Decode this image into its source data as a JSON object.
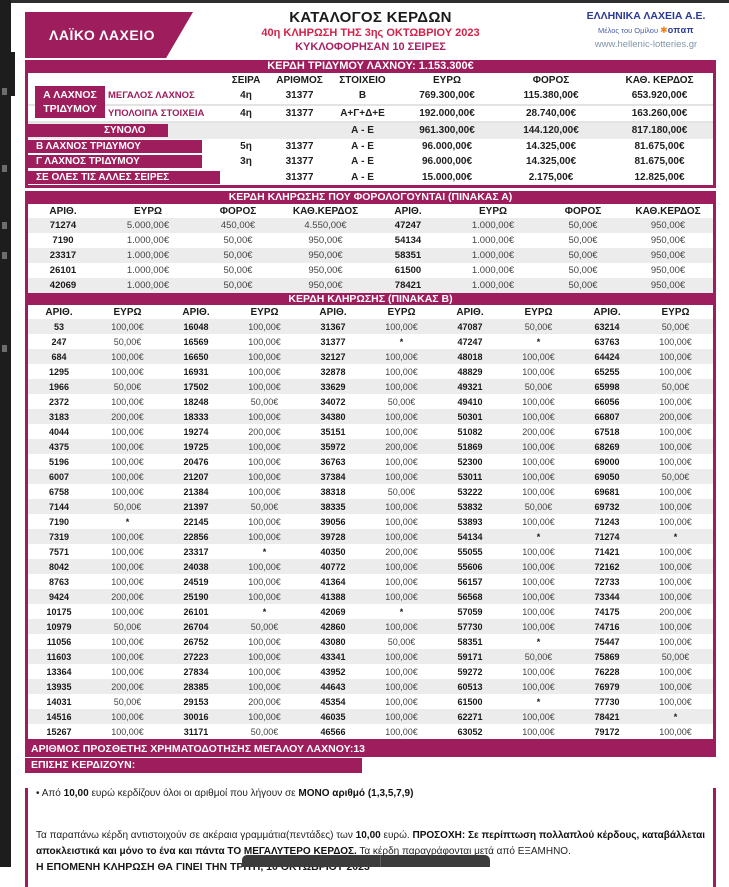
{
  "page": {
    "header": {
      "brand": "ΛΑΪΚΟ ΛΑΧΕΙΟ",
      "title": "ΚΑΤΑΛΟΓΟΣ ΚΕΡΔΩΝ",
      "subtitle": "40η ΚΛΗΡΩΣΗ ΤΗΣ 3ης ΟΚΤΩΒΡΙΟΥ 2023",
      "series_line": "ΚΥΚΛΟΦΟΡΗΣΑΝ 10 ΣΕΙΡΕΣ",
      "org": "ΕΛΛΗΝΙΚΑ ΛΑΧΕΙΑ Α.Ε.",
      "org_member": "Μέλος του Ομίλου",
      "org_logo": "οπαπ",
      "website": "www.hellenic-lotteries.gr"
    },
    "colors": {
      "magenta": "#9e1d5c",
      "red": "#d32249",
      "blue": "#2b3a94"
    },
    "triple_banner": "ΚΕΡΔΗ ΤΡΙΔΥΜΟΥ ΛΑΧΝΟΥ: 1.153.300€",
    "triple_table": {
      "headers": [
        "ΣΕΙΡΑ",
        "ΑΡΙΘΜΟΣ",
        "ΣΤΟΙΧΕΙΟ",
        "ΕΥΡΩ",
        "ΦΟΡΟΣ",
        "ΚΑΘ. ΚΕΡΔΟΣ"
      ],
      "group_a_label": "Α ΛΑΧΝΟΣ ΤΡΙΔΥΜΟΥ",
      "rows": [
        {
          "label": "",
          "sub": "ΜΕΓΑΛΟΣ ΛΑΧΝΟΣ",
          "cells": [
            "4η",
            "31377",
            "Β",
            "769.300,00€",
            "115.380,00€",
            "653.920,00€"
          ]
        },
        {
          "label": "",
          "sub": "ΥΠΟΛΟΙΠΑ ΣΤΟΙΧΕΙΑ",
          "cells": [
            "4η",
            "31377",
            "Α+Γ+Δ+Ε",
            "192.000,00€",
            "28.740,00€",
            "163.260,00€"
          ]
        },
        {
          "label": "ΣΥΝΟΛΟ",
          "sub": "",
          "cells": [
            "",
            "",
            "Α - Ε",
            "961.300,00€",
            "144.120,00€",
            "817.180,00€"
          ]
        },
        {
          "label": "Β ΛΑΧΝΟΣ ΤΡΙΔΥΜΟΥ",
          "sub": "",
          "cells": [
            "5η",
            "31377",
            "Α - Ε",
            "96.000,00€",
            "14.325,00€",
            "81.675,00€"
          ]
        },
        {
          "label": "Γ ΛΑΧΝΟΣ ΤΡΙΔΥΜΟΥ",
          "sub": "",
          "cells": [
            "3η",
            "31377",
            "Α - Ε",
            "96.000,00€",
            "14.325,00€",
            "81.675,00€"
          ]
        },
        {
          "label": "ΣΕ ΟΛΕΣ ΤΙΣ ΑΛΛΕΣ ΣΕΙΡΕΣ",
          "sub": "",
          "cells": [
            "",
            "31377",
            "Α - Ε",
            "15.000,00€",
            "2.175,00€",
            "12.825,00€"
          ]
        }
      ]
    },
    "table_a": {
      "title": "ΚΕΡΔΗ ΚΛΗΡΩΣΗΣ ΠΟΥ ΦΟΡΟΛΟΓΟΥΝΤΑΙ (ΠΙΝΑΚΑΣ Α)",
      "headers": [
        "ΑΡΙΘ.",
        "ΕΥΡΩ",
        "ΦΟΡΟΣ",
        "ΚΑΘ.ΚΕΡΔΟΣ",
        "ΑΡΙΘ.",
        "ΕΥΡΩ",
        "ΦΟΡΟΣ",
        "ΚΑΘ.ΚΕΡΔΟΣ"
      ],
      "rows": [
        [
          "71274",
          "5.000,00€",
          "450,00€",
          "4.550,00€",
          "47247",
          "1.000,00€",
          "50,00€",
          "950,00€"
        ],
        [
          "7190",
          "1.000,00€",
          "50,00€",
          "950,00€",
          "54134",
          "1.000,00€",
          "50,00€",
          "950,00€"
        ],
        [
          "23317",
          "1.000,00€",
          "50,00€",
          "950,00€",
          "58351",
          "1.000,00€",
          "50,00€",
          "950,00€"
        ],
        [
          "26101",
          "1.000,00€",
          "50,00€",
          "950,00€",
          "61500",
          "1.000,00€",
          "50,00€",
          "950,00€"
        ],
        [
          "42069",
          "1.000,00€",
          "50,00€",
          "950,00€",
          "78421",
          "1.000,00€",
          "50,00€",
          "950,00€"
        ]
      ]
    },
    "table_b": {
      "title": "ΚΕΡΔΗ ΚΛΗΡΩΣΗΣ (ΠΙΝΑΚΑΣ Β)",
      "headers": [
        "ΑΡΙΘ.",
        "ΕΥΡΩ",
        "ΑΡΙΘ.",
        "ΕΥΡΩ",
        "ΑΡΙΘ.",
        "ΕΥΡΩ",
        "ΑΡΙΘ.",
        "ΕΥΡΩ",
        "ΑΡΙΘ.",
        "ΕΥΡΩ"
      ],
      "rows": [
        [
          "53",
          "100,00€",
          "16048",
          "100,00€",
          "31367",
          "100,00€",
          "47087",
          "50,00€",
          "63214",
          "50,00€"
        ],
        [
          "247",
          "50,00€",
          "16569",
          "100,00€",
          "31377",
          "*",
          "47247",
          "*",
          "63763",
          "100,00€"
        ],
        [
          "684",
          "100,00€",
          "16650",
          "100,00€",
          "32127",
          "100,00€",
          "48018",
          "100,00€",
          "64424",
          "100,00€"
        ],
        [
          "1295",
          "100,00€",
          "16931",
          "100,00€",
          "32878",
          "100,00€",
          "48829",
          "100,00€",
          "65255",
          "100,00€"
        ],
        [
          "1966",
          "50,00€",
          "17502",
          "100,00€",
          "33629",
          "100,00€",
          "49321",
          "50,00€",
          "65998",
          "50,00€"
        ],
        [
          "2372",
          "100,00€",
          "18248",
          "50,00€",
          "34072",
          "50,00€",
          "49410",
          "100,00€",
          "66056",
          "100,00€"
        ],
        [
          "3183",
          "200,00€",
          "18333",
          "100,00€",
          "34380",
          "100,00€",
          "50301",
          "100,00€",
          "66807",
          "200,00€"
        ],
        [
          "4044",
          "100,00€",
          "19274",
          "200,00€",
          "35151",
          "100,00€",
          "51082",
          "200,00€",
          "67518",
          "100,00€"
        ],
        [
          "4375",
          "100,00€",
          "19725",
          "100,00€",
          "35972",
          "200,00€",
          "51869",
          "100,00€",
          "68269",
          "100,00€"
        ],
        [
          "5196",
          "100,00€",
          "20476",
          "100,00€",
          "36763",
          "100,00€",
          "52300",
          "100,00€",
          "69000",
          "100,00€"
        ],
        [
          "6007",
          "100,00€",
          "21207",
          "100,00€",
          "37384",
          "100,00€",
          "53011",
          "100,00€",
          "69050",
          "50,00€"
        ],
        [
          "6758",
          "100,00€",
          "21384",
          "100,00€",
          "38318",
          "50,00€",
          "53222",
          "100,00€",
          "69681",
          "100,00€"
        ],
        [
          "7144",
          "50,00€",
          "21397",
          "50,00€",
          "38335",
          "100,00€",
          "53832",
          "50,00€",
          "69732",
          "100,00€"
        ],
        [
          "7190",
          "*",
          "22145",
          "100,00€",
          "39056",
          "100,00€",
          "53893",
          "100,00€",
          "71243",
          "100,00€"
        ],
        [
          "7319",
          "100,00€",
          "22856",
          "100,00€",
          "39728",
          "100,00€",
          "54134",
          "*",
          "71274",
          "*"
        ],
        [
          "7571",
          "100,00€",
          "23317",
          "*",
          "40350",
          "200,00€",
          "55055",
          "100,00€",
          "71421",
          "100,00€"
        ],
        [
          "8042",
          "100,00€",
          "24038",
          "100,00€",
          "40772",
          "100,00€",
          "55606",
          "100,00€",
          "72162",
          "100,00€"
        ],
        [
          "8763",
          "100,00€",
          "24519",
          "100,00€",
          "41364",
          "100,00€",
          "56157",
          "100,00€",
          "72733",
          "100,00€"
        ],
        [
          "9424",
          "200,00€",
          "25190",
          "100,00€",
          "41388",
          "100,00€",
          "56568",
          "100,00€",
          "73344",
          "100,00€"
        ],
        [
          "10175",
          "100,00€",
          "26101",
          "*",
          "42069",
          "*",
          "57059",
          "100,00€",
          "74175",
          "200,00€"
        ],
        [
          "10979",
          "50,00€",
          "26704",
          "50,00€",
          "42860",
          "100,00€",
          "57730",
          "100,00€",
          "74716",
          "100,00€"
        ],
        [
          "11056",
          "100,00€",
          "26752",
          "100,00€",
          "43080",
          "50,00€",
          "58351",
          "*",
          "75447",
          "100,00€"
        ],
        [
          "11603",
          "100,00€",
          "27223",
          "100,00€",
          "43341",
          "100,00€",
          "59171",
          "50,00€",
          "75869",
          "50,00€"
        ],
        [
          "13364",
          "100,00€",
          "27834",
          "100,00€",
          "43952",
          "100,00€",
          "59272",
          "100,00€",
          "76228",
          "100,00€"
        ],
        [
          "13935",
          "200,00€",
          "28385",
          "100,00€",
          "44643",
          "100,00€",
          "60513",
          "100,00€",
          "76979",
          "100,00€"
        ],
        [
          "14031",
          "50,00€",
          "29153",
          "200,00€",
          "45354",
          "100,00€",
          "61500",
          "*",
          "77730",
          "100,00€"
        ],
        [
          "14516",
          "100,00€",
          "30016",
          "100,00€",
          "46035",
          "100,00€",
          "62271",
          "100,00€",
          "78421",
          "*"
        ],
        [
          "15267",
          "100,00€",
          "31171",
          "50,00€",
          "46566",
          "100,00€",
          "63052",
          "100,00€",
          "79172",
          "100,00€"
        ]
      ]
    },
    "footer": {
      "funding_line": "ΑΡΙΘΜΟΣ ΠΡΟΣΘΕΤΗΣ ΧΡΗΜΑΤΟΔΟΤΗΣΗΣ ΜΕΓΑΛΟΥ ΛΑΧΝΟΥ:13",
      "also_win": "ΕΠΙΣΗΣ ΚΕΡΔΙΖΟΥΝ:",
      "bullet_segments": [
        {
          "text": "• Από ",
          "bold": false
        },
        {
          "text": "10,00",
          "bold": true
        },
        {
          "text": " ευρώ κερδίζουν όλοι οι αριθμοί που λήγουν σε ",
          "bold": false
        },
        {
          "text": "ΜΟΝΟ αριθμό (1,3,5,7,9)",
          "bold": true
        }
      ],
      "paragraph_segments": [
        {
          "text": "Τα παραπάνω κέρδη αντιστοιχούν σε ακέραια γραμμάτια(πεντάδες) των ",
          "bold": false
        },
        {
          "text": "10,00",
          "bold": true
        },
        {
          "text": " ευρώ. ",
          "bold": false
        },
        {
          "text": "ΠΡΟΣΟΧΗ: Σε περίπτωση πολλαπλού κέρδους, καταβάλλεται αποκλειστικά και  μόνο το ένα και πάντα ΤΟ ΜΕΓΑΛΥΤΕΡΟ ΚΕΡΔΟΣ.",
          "bold": true
        },
        {
          "text": " Τα κέρδη παραγράφονται μετά από ΕΞΑΜΗΝΟ.",
          "bold": false
        }
      ],
      "next_draw": "Η ΕΠΟΜΕΝΗ ΚΛΗΡΩΣΗ ΘΑ ΓΙΝΕΙ ΤΗΝ ΤΡΙΤΗ, 10 ΟΚΤΩΒΡΙΟΥ 2023"
    }
  }
}
